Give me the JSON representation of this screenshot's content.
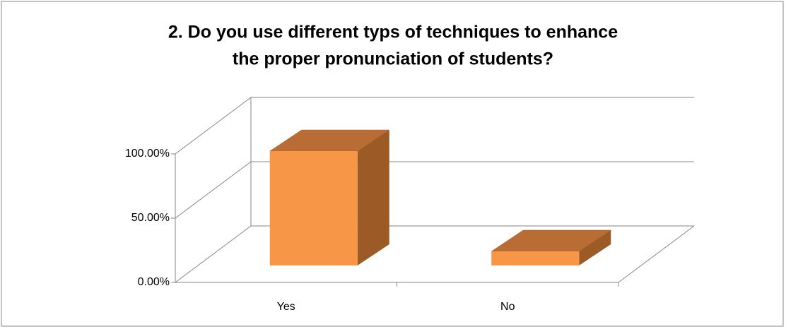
{
  "chart_data": {
    "type": "bar3d",
    "title": [
      "2. Do you use different typs of techniques to enhance",
      "the proper pronunciation of students?"
    ],
    "categories": [
      "Yes",
      "No"
    ],
    "values": [
      89,
      11
    ],
    "color": "#f79646",
    "ylim": [
      0,
      100
    ],
    "yticks": [
      {
        "value": 0,
        "label": "0.00%"
      },
      {
        "value": 50,
        "label": "50.00%"
      },
      {
        "value": 100,
        "label": "100.00%"
      }
    ],
    "grid": true
  }
}
